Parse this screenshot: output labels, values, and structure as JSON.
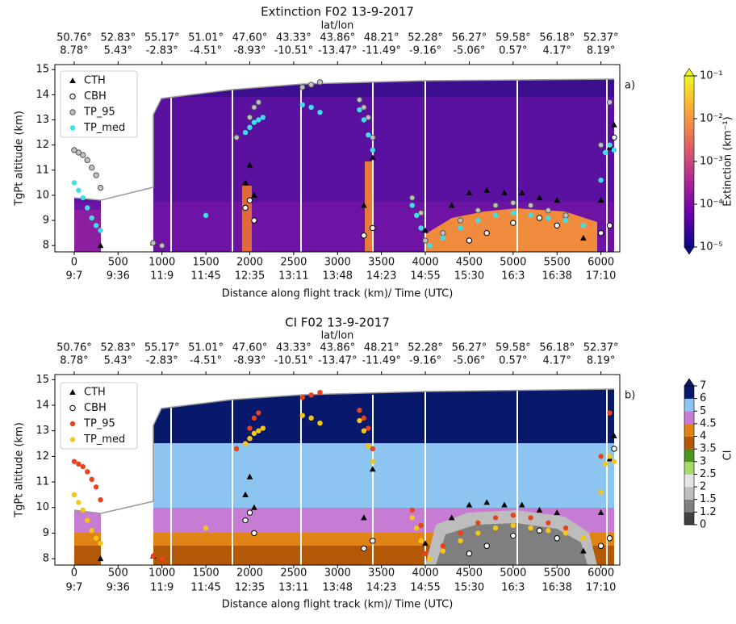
{
  "chart_data": [
    {
      "type": "scatter",
      "title": "Extinction F02  13-9-2017",
      "top_axis_label": "lat/lon",
      "top_ticks": [
        {
          "value": 0,
          "lat": "50.76°",
          "lon": "8.78°"
        },
        {
          "value": 500,
          "lat": "52.83°",
          "lon": "5.43°"
        },
        {
          "value": 1000,
          "lat": "55.17°",
          "lon": "-2.83°"
        },
        {
          "value": 1500,
          "lat": "51.01°",
          "lon": "-4.51°"
        },
        {
          "value": 2000,
          "lat": "47.60°",
          "lon": "-8.93°"
        },
        {
          "value": 2500,
          "lat": "43.33°",
          "lon": "-10.51°"
        },
        {
          "value": 3000,
          "lat": "43.86°",
          "lon": "-13.47°"
        },
        {
          "value": 3500,
          "lat": "48.21°",
          "lon": "-11.49°"
        },
        {
          "value": 4000,
          "lat": "52.28°",
          "lon": "-9.16°"
        },
        {
          "value": 4500,
          "lat": "56.27°",
          "lon": "-5.06°"
        },
        {
          "value": 5000,
          "lat": "59.58°",
          "lon": "0.57°"
        },
        {
          "value": 5500,
          "lat": "56.18°",
          "lon": "4.17°"
        },
        {
          "value": 6000,
          "lat": "52.37°",
          "lon": "8.19°"
        }
      ],
      "x_label": "Distance along flight track (km)/ Time (UTC)",
      "y_label": "TgPt altitude (km)",
      "xlim": [
        -220,
        6215
      ],
      "xticks": [
        0,
        500,
        1000,
        1500,
        2000,
        2500,
        3000,
        3500,
        4000,
        4500,
        5000,
        5500,
        6000
      ],
      "xtick_times": [
        "9:7",
        "9:36",
        "11:9",
        "11:45",
        "12:35",
        "13:11",
        "13:48",
        "14:23",
        "14:55",
        "15:30",
        "16:3",
        "16:38",
        "17:10"
      ],
      "ylim": [
        7.75,
        15.2
      ],
      "yticks": [
        8,
        9,
        10,
        11,
        12,
        13,
        14,
        15
      ],
      "panel_label": "a)",
      "series": [
        {
          "name": "CTH",
          "marker": "triangle",
          "color": "#000000",
          "x": [
            300,
            900,
            1950,
            2000,
            2050,
            3300,
            3400,
            4000,
            4300,
            4500,
            4700,
            4900,
            5100,
            5300,
            5500,
            5800,
            6000,
            6100,
            6150
          ],
          "y": [
            8.0,
            8.1,
            10.5,
            11.2,
            10.0,
            9.6,
            11.5,
            8.6,
            9.6,
            10.1,
            10.2,
            10.1,
            10.1,
            9.9,
            9.8,
            8.3,
            9.8,
            11.9,
            12.8
          ]
        },
        {
          "name": "CBH",
          "marker": "open",
          "color": "#ffffff",
          "x": [
            1950,
            2000,
            2050,
            3300,
            3400,
            4500,
            4700,
            5000,
            5300,
            5500,
            6000,
            6100,
            6150
          ],
          "y": [
            9.5,
            9.8,
            9.0,
            8.4,
            8.7,
            8.2,
            8.5,
            8.9,
            9.1,
            8.8,
            8.5,
            8.8,
            12.3
          ]
        },
        {
          "name": "TP_95",
          "marker": "circle",
          "color": "#c0c0c0",
          "x": [
            0,
            50,
            100,
            150,
            200,
            250,
            300,
            900,
            1000,
            1850,
            2000,
            2050,
            2100,
            2600,
            2700,
            2800,
            3250,
            3300,
            3350,
            3400,
            3850,
            3950,
            4000,
            4200,
            4400,
            4600,
            4800,
            5000,
            5200,
            5400,
            5600,
            6000,
            6100
          ],
          "y": [
            11.8,
            11.7,
            11.6,
            11.4,
            11.1,
            10.8,
            10.3,
            8.1,
            8.0,
            12.3,
            13.1,
            13.5,
            13.7,
            14.3,
            14.4,
            14.5,
            13.8,
            13.5,
            13.1,
            12.3,
            9.9,
            9.3,
            8.2,
            8.5,
            9.0,
            9.4,
            9.6,
            9.7,
            9.6,
            9.4,
            9.2,
            12.0,
            13.7
          ]
        },
        {
          "name": "TP_med",
          "marker": "circle",
          "color": "#3ee0e8",
          "x": [
            0,
            50,
            100,
            150,
            200,
            250,
            300,
            1500,
            1950,
            2000,
            2050,
            2100,
            2150,
            2600,
            2700,
            2800,
            3250,
            3300,
            3350,
            3400,
            3850,
            3900,
            3950,
            4050,
            4200,
            4400,
            4600,
            4800,
            5000,
            5200,
            5400,
            5600,
            5800,
            6000,
            6050,
            6100,
            6150
          ],
          "y": [
            10.5,
            10.2,
            9.9,
            9.5,
            9.1,
            8.8,
            8.6,
            9.2,
            12.5,
            12.7,
            12.9,
            13.0,
            13.1,
            13.6,
            13.5,
            13.3,
            13.4,
            13.0,
            12.4,
            11.8,
            9.6,
            9.2,
            8.7,
            8.0,
            8.3,
            8.7,
            9.0,
            9.2,
            9.3,
            9.2,
            9.1,
            9.0,
            8.8,
            10.6,
            11.7,
            12.0,
            11.8
          ]
        }
      ],
      "colorbar": {
        "scale": "log",
        "lim": [
          1e-05,
          0.1
        ],
        "label": "Extinction (km⁻¹)",
        "ticks": [
          {
            "value": 0.1,
            "label": "10⁻¹"
          },
          {
            "value": 0.01,
            "label": "10⁻²"
          },
          {
            "value": 0.001,
            "label": "10⁻³"
          },
          {
            "value": 0.0001,
            "label": "10⁻⁴"
          },
          {
            "value": 1e-05,
            "label": "10⁻⁵"
          }
        ],
        "colors": [
          "#0d0887",
          "#6a00a8",
          "#b12a90",
          "#e16462",
          "#fca636",
          "#f0f921"
        ]
      }
    },
    {
      "type": "scatter",
      "title": "CI F02  13-9-2017",
      "top_axis_label": "lat/lon",
      "top_ticks": [
        {
          "value": 0,
          "lat": "50.76°",
          "lon": "8.78°"
        },
        {
          "value": 500,
          "lat": "52.83°",
          "lon": "5.43°"
        },
        {
          "value": 1000,
          "lat": "55.17°",
          "lon": "-2.83°"
        },
        {
          "value": 1500,
          "lat": "51.01°",
          "lon": "-4.51°"
        },
        {
          "value": 2000,
          "lat": "47.60°",
          "lon": "-8.93°"
        },
        {
          "value": 2500,
          "lat": "43.33°",
          "lon": "-10.51°"
        },
        {
          "value": 3000,
          "lat": "43.86°",
          "lon": "-13.47°"
        },
        {
          "value": 3500,
          "lat": "48.21°",
          "lon": "-11.49°"
        },
        {
          "value": 4000,
          "lat": "52.28°",
          "lon": "-9.16°"
        },
        {
          "value": 4500,
          "lat": "56.27°",
          "lon": "-5.06°"
        },
        {
          "value": 5000,
          "lat": "59.58°",
          "lon": "0.57°"
        },
        {
          "value": 5500,
          "lat": "56.18°",
          "lon": "4.17°"
        },
        {
          "value": 6000,
          "lat": "52.37°",
          "lon": "8.19°"
        }
      ],
      "x_label": "Distance along flight track (km)/ Time (UTC)",
      "y_label": "TgPt altitude (km)",
      "xlim": [
        -220,
        6215
      ],
      "xticks": [
        0,
        500,
        1000,
        1500,
        2000,
        2500,
        3000,
        3500,
        4000,
        4500,
        5000,
        5500,
        6000
      ],
      "xtick_times": [
        "9:7",
        "9:36",
        "11:9",
        "11:45",
        "12:35",
        "13:11",
        "13:48",
        "14:23",
        "14:55",
        "15:30",
        "16:3",
        "16:38",
        "17:10"
      ],
      "ylim": [
        7.75,
        15.2
      ],
      "yticks": [
        8,
        9,
        10,
        11,
        12,
        13,
        14,
        15
      ],
      "panel_label": "b)",
      "series": [
        {
          "name": "CTH",
          "marker": "triangle",
          "color": "#000000",
          "x": [
            300,
            900,
            1950,
            2000,
            2050,
            3300,
            3400,
            4000,
            4300,
            4500,
            4700,
            4900,
            5100,
            5300,
            5500,
            5800,
            6000,
            6100,
            6150
          ],
          "y": [
            8.0,
            8.1,
            10.5,
            11.2,
            10.0,
            9.6,
            11.5,
            8.6,
            9.6,
            10.1,
            10.2,
            10.1,
            10.1,
            9.9,
            9.8,
            8.3,
            9.8,
            11.9,
            12.8
          ]
        },
        {
          "name": "CBH",
          "marker": "open",
          "color": "#ffffff",
          "x": [
            1950,
            2000,
            2050,
            3300,
            3400,
            4500,
            4700,
            5000,
            5300,
            5500,
            6000,
            6100,
            6150
          ],
          "y": [
            9.5,
            9.8,
            9.0,
            8.4,
            8.7,
            8.2,
            8.5,
            8.9,
            9.1,
            8.8,
            8.5,
            8.8,
            12.3
          ]
        },
        {
          "name": "TP_95",
          "marker": "circle",
          "color": "#e8431c",
          "x": [
            0,
            50,
            100,
            150,
            200,
            250,
            300,
            900,
            1000,
            1850,
            2000,
            2050,
            2100,
            2600,
            2700,
            2800,
            3250,
            3300,
            3350,
            3400,
            3850,
            3950,
            4000,
            4200,
            4400,
            4600,
            4800,
            5000,
            5200,
            5400,
            5600,
            6000,
            6100
          ],
          "y": [
            11.8,
            11.7,
            11.6,
            11.4,
            11.1,
            10.8,
            10.3,
            8.1,
            8.0,
            12.3,
            13.1,
            13.5,
            13.7,
            14.3,
            14.4,
            14.5,
            13.8,
            13.5,
            13.1,
            12.3,
            9.9,
            9.3,
            8.2,
            8.5,
            9.0,
            9.4,
            9.6,
            9.7,
            9.6,
            9.4,
            9.2,
            12.0,
            13.7
          ]
        },
        {
          "name": "TP_med",
          "marker": "circle",
          "color": "#f5c518",
          "x": [
            0,
            50,
            100,
            150,
            200,
            250,
            300,
            1500,
            1950,
            2000,
            2050,
            2100,
            2150,
            2600,
            2700,
            2800,
            3250,
            3300,
            3350,
            3400,
            3850,
            3900,
            3950,
            4050,
            4200,
            4400,
            4600,
            4800,
            5000,
            5200,
            5400,
            5600,
            5800,
            6000,
            6050,
            6100,
            6150
          ],
          "y": [
            10.5,
            10.2,
            9.9,
            9.5,
            9.1,
            8.8,
            8.6,
            9.2,
            12.5,
            12.7,
            12.9,
            13.0,
            13.1,
            13.6,
            13.5,
            13.3,
            13.4,
            13.0,
            12.4,
            11.8,
            9.6,
            9.2,
            8.7,
            8.0,
            8.3,
            8.7,
            9.0,
            9.2,
            9.3,
            9.2,
            9.1,
            9.0,
            8.8,
            10.6,
            11.7,
            12.0,
            11.8
          ]
        }
      ],
      "colorbar": {
        "scale": "discrete",
        "label": "CI",
        "ticks": [
          0,
          1.2,
          1.5,
          2,
          2.5,
          3,
          3.5,
          4,
          4.5,
          5,
          6,
          7
        ],
        "colors": [
          "#404040",
          "#7f7f7f",
          "#bdbdbd",
          "#e4e4e4",
          "#a6d96a",
          "#4d9221",
          "#b35806",
          "#e08214",
          "#c77cd4",
          "#8cc6f0",
          "#08186b"
        ]
      }
    }
  ]
}
